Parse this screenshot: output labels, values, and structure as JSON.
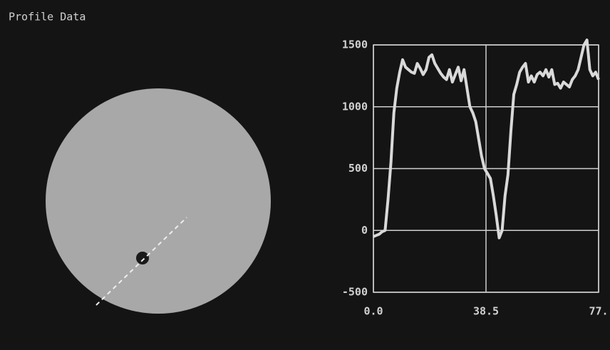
{
  "chart_data": {
    "type": "line",
    "title": "Profile Data",
    "x": [
      0,
      1,
      2,
      3,
      4,
      5,
      6,
      7,
      8,
      9,
      10,
      11,
      12,
      13,
      14,
      15,
      16,
      17,
      18,
      19,
      20,
      21,
      22,
      23,
      24,
      25,
      26,
      27,
      28,
      29,
      30,
      31,
      32,
      33,
      34,
      35,
      36,
      37,
      38,
      39,
      40,
      41,
      42,
      43,
      44,
      45,
      46,
      47,
      48,
      49,
      50,
      51,
      52,
      53,
      54,
      55,
      56,
      57,
      58,
      59,
      60,
      61,
      62,
      63,
      64,
      65,
      66,
      67,
      68,
      69,
      70,
      71,
      72,
      73,
      74,
      75,
      76,
      77
    ],
    "values": [
      -50,
      -40,
      -30,
      -10,
      0,
      250,
      550,
      950,
      1150,
      1280,
      1380,
      1320,
      1300,
      1280,
      1270,
      1350,
      1310,
      1260,
      1300,
      1400,
      1420,
      1350,
      1310,
      1270,
      1240,
      1220,
      1300,
      1200,
      1260,
      1320,
      1210,
      1300,
      1150,
      1000,
      950,
      880,
      740,
      600,
      500,
      460,
      420,
      280,
      120,
      -60,
      0,
      280,
      450,
      800,
      1100,
      1180,
      1280,
      1320,
      1350,
      1200,
      1250,
      1200,
      1260,
      1280,
      1250,
      1300,
      1240,
      1300,
      1180,
      1190,
      1150,
      1200,
      1180,
      1160,
      1220,
      1250,
      1300,
      1400,
      1500,
      1540,
      1300,
      1250,
      1280,
      1220
    ],
    "color": "#d9d9d9",
    "xlim": [
      0,
      77
    ],
    "xticks": [
      {
        "value": 0,
        "label": "0.0"
      },
      {
        "value": 38.5,
        "label": "38.5"
      },
      {
        "value": 77,
        "label": "77."
      }
    ],
    "ylim": [
      -500,
      1500
    ],
    "yticks": [
      -500,
      0,
      500,
      1000,
      1500
    ],
    "grid": true
  }
}
